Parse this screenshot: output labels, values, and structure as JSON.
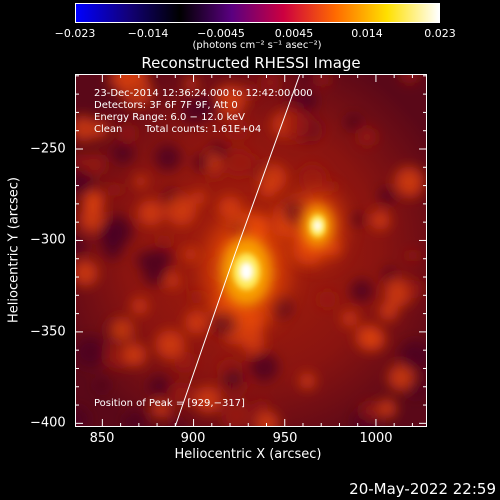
{
  "colorbar": {
    "colors": [
      "#0000ff",
      "#12007a",
      "#000000",
      "#5a0080",
      "#cc0040",
      "#ff6a00",
      "#ffe000",
      "#ffffff"
    ],
    "ticks": [
      "−0.023",
      "−0.014",
      "−0.0045",
      "0.0045",
      "0.014",
      "0.023"
    ],
    "unit_label": "(photons cm⁻² s⁻¹ asec⁻²)"
  },
  "image": {
    "title": "Reconstructed RHESSI Image",
    "time_range": "23-Dec-2014 12:36:24.000 to 12:42:00.000",
    "detectors": "Detectors: 3F 6F 7F 9F, Att 0",
    "energy": "Energy Range: 6.0 − 12.0 keV",
    "clean": "Clean",
    "counts": "Total counts: 1.61E+04",
    "peak": "Position of Peak = [929,−317]",
    "xlabel": "Heliocentric X (arcsec)",
    "ylabel": "Heliocentric Y (arcsec)",
    "xticks": [
      "850",
      "900",
      "950",
      "1000"
    ],
    "yticks": [
      "−250",
      "−300",
      "−350",
      "−400"
    ],
    "xlim": [
      835,
      1028
    ],
    "ylim": [
      -402,
      -209
    ],
    "sources": [
      {
        "x": 929,
        "y": -317,
        "peak": 1.0
      },
      {
        "x": 968,
        "y": -292,
        "peak": 0.55
      }
    ]
  },
  "footer": {
    "date": "20-May-2022 22:59"
  }
}
